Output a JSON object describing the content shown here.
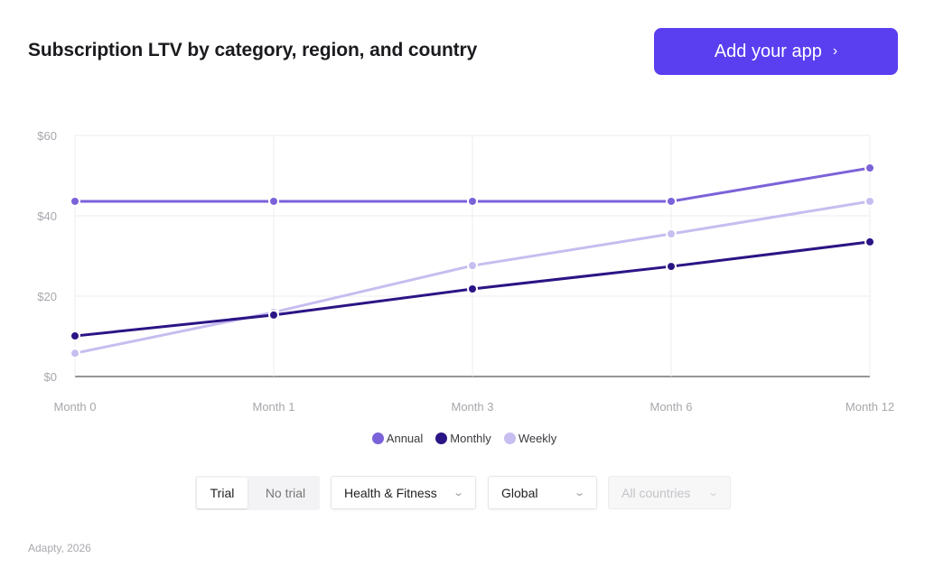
{
  "header": {
    "title": "Subscription LTV by category, region, and country",
    "cta_label": "Add your app",
    "cta_chevron": "›",
    "cta_color": "#5a3ff0"
  },
  "chart_data": {
    "type": "line",
    "title": "Subscription LTV by category, region, and country",
    "xlabel": "",
    "ylabel": "",
    "categories": [
      "Month 0",
      "Month 1",
      "Month 3",
      "Month 6",
      "Month 12"
    ],
    "y_ticks": [
      "$0",
      "$20",
      "$40",
      "$60"
    ],
    "ylim": [
      0,
      60
    ],
    "grid": true,
    "legend_position": "bottom",
    "series": [
      {
        "name": "Annual",
        "color": "#7b62d9",
        "values": [
          43.6,
          43.6,
          43.6,
          43.6,
          51.9
        ]
      },
      {
        "name": "Monthly",
        "color": "#2b1485",
        "values": [
          10.1,
          15.3,
          21.8,
          27.4,
          33.5
        ]
      },
      {
        "name": "Weekly",
        "color": "#c7bdf0",
        "values": [
          5.8,
          16.0,
          27.6,
          35.5,
          43.6
        ]
      }
    ]
  },
  "legend": [
    {
      "label": "Annual",
      "color": "#7b62d9"
    },
    {
      "label": "Monthly",
      "color": "#2b1485"
    },
    {
      "label": "Weekly",
      "color": "#c7bdf0"
    }
  ],
  "filters": {
    "trial_toggle": {
      "options": [
        "Trial",
        "No trial"
      ],
      "selected": "Trial"
    },
    "category": {
      "value": "Health & Fitness",
      "caret": "⌄"
    },
    "region": {
      "value": "Global",
      "caret": "⌄"
    },
    "country": {
      "value": "All countries",
      "caret": "⌄",
      "disabled": true
    }
  },
  "footer": {
    "text": "Adapty, 2026"
  }
}
